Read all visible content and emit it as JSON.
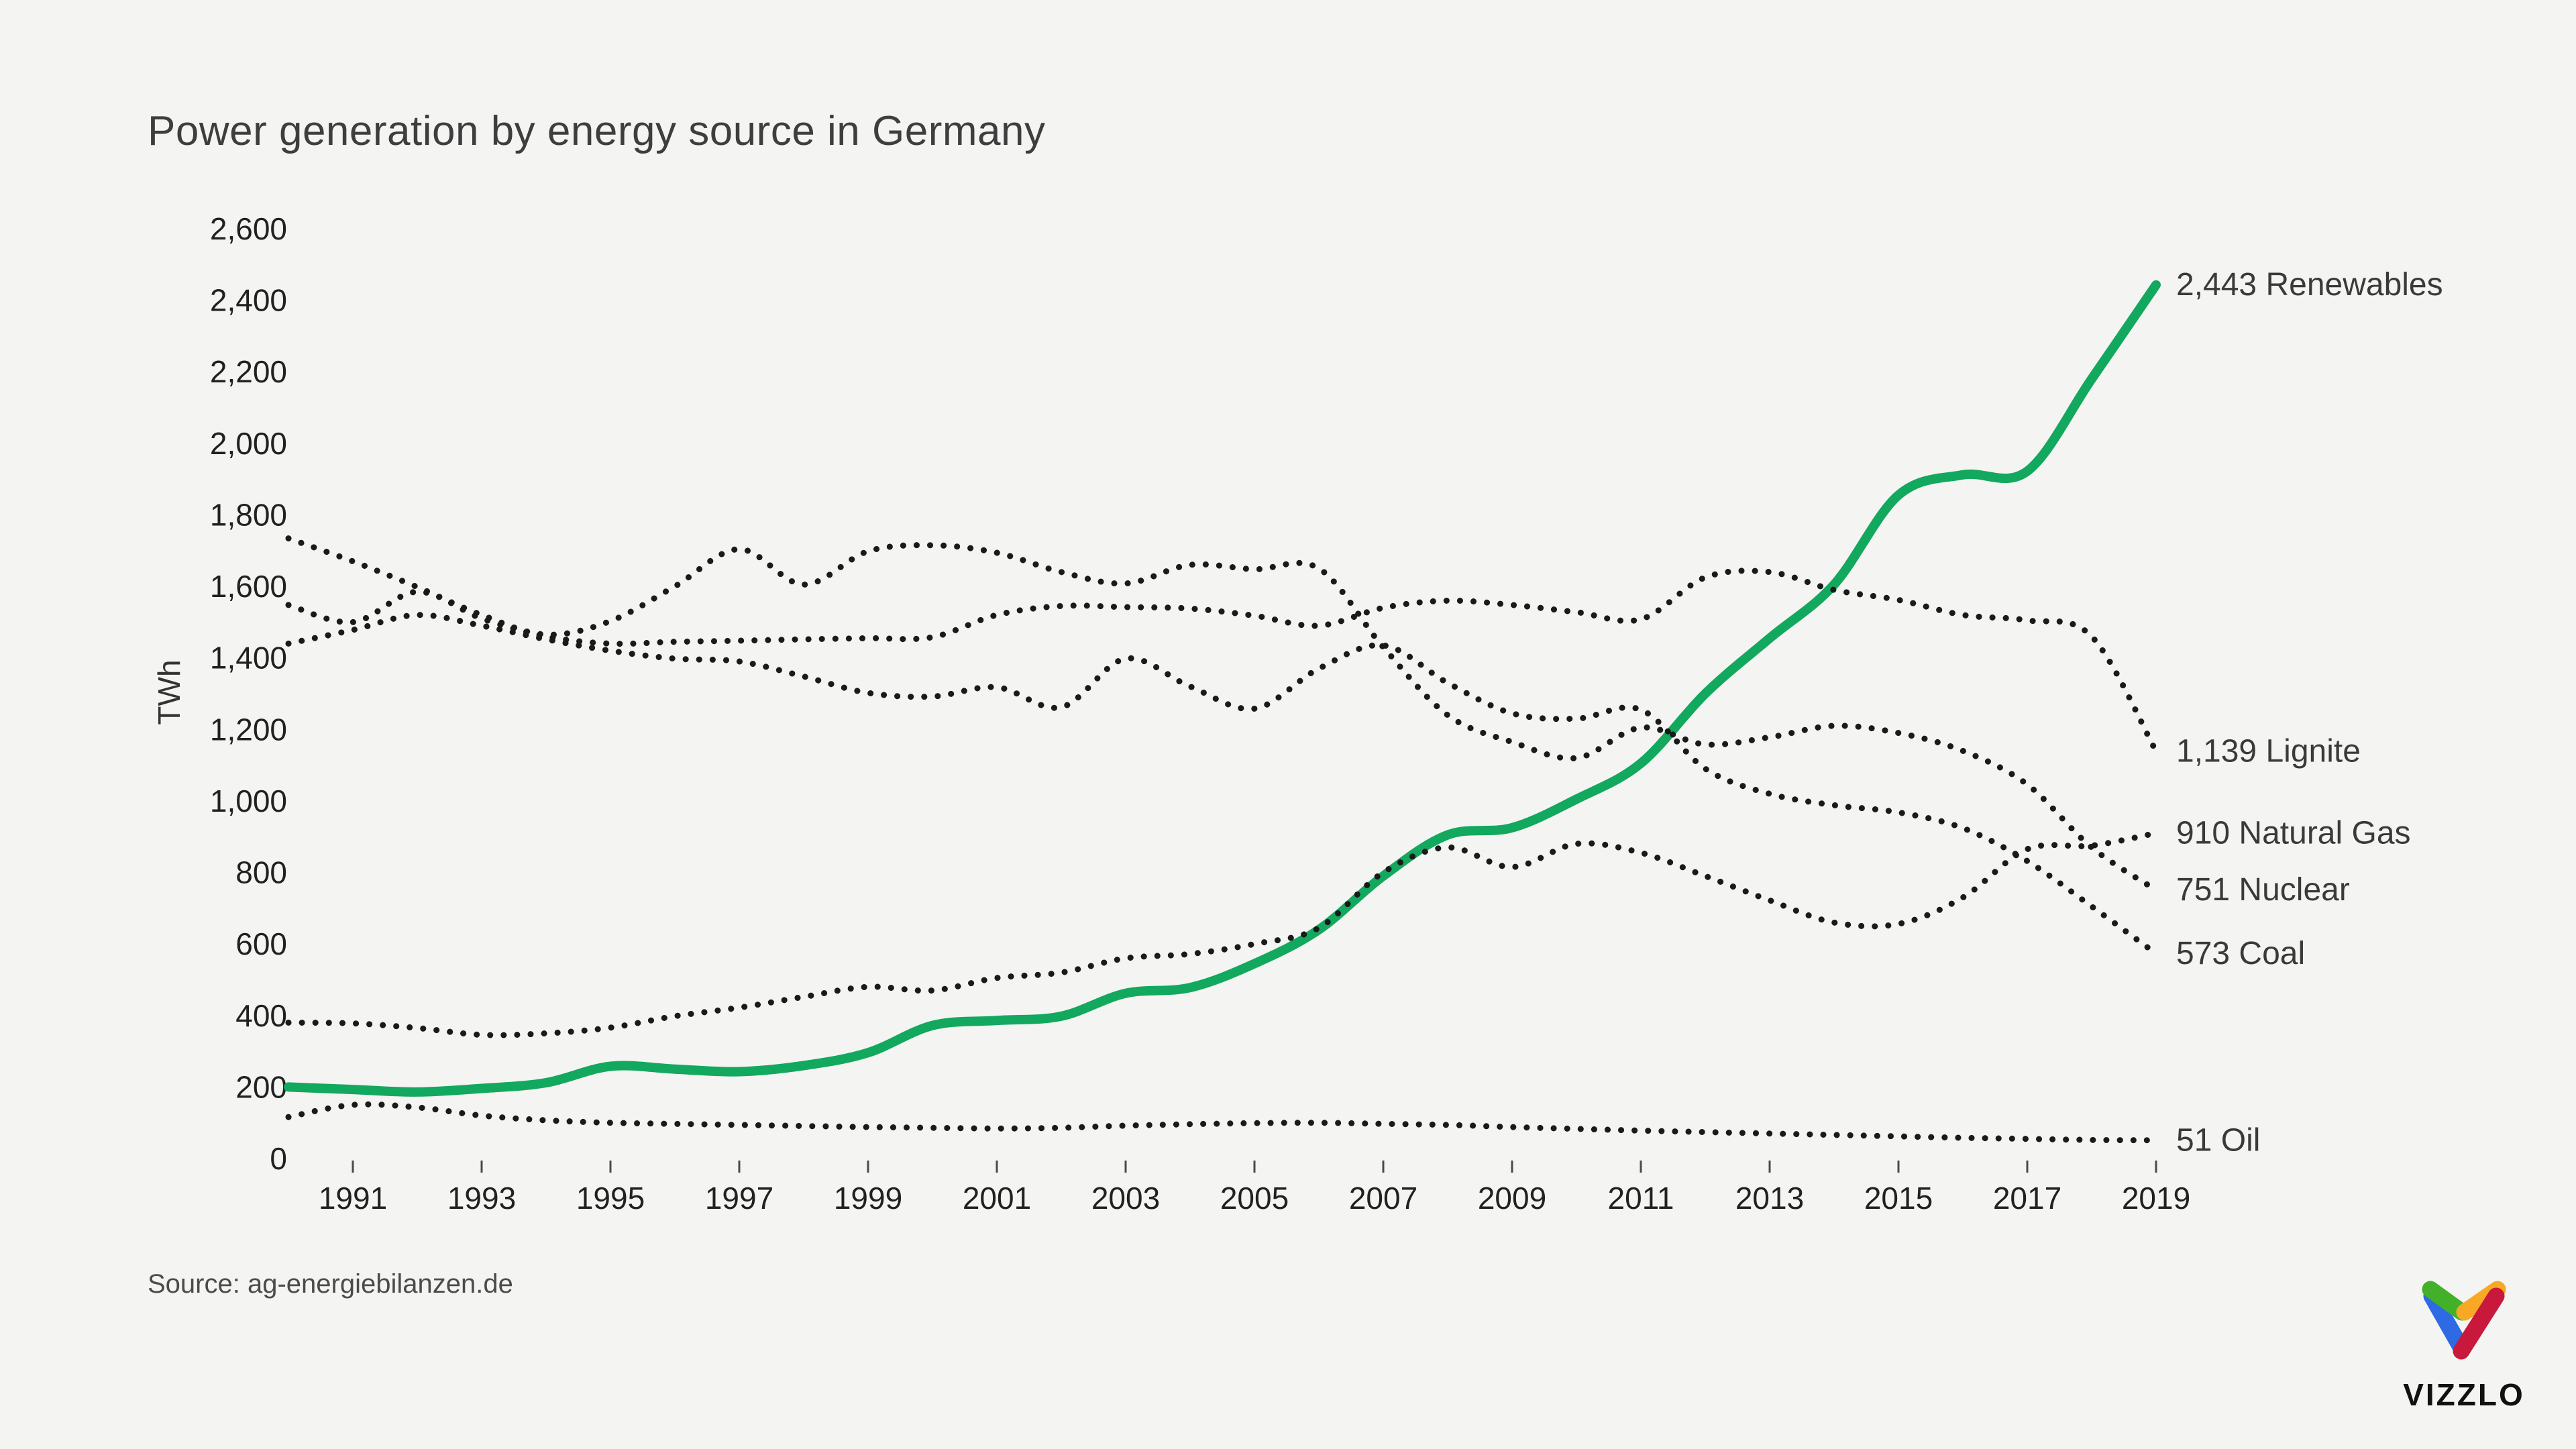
{
  "header": {
    "title": "Power generation by energy source in Germany"
  },
  "source": {
    "text": "Source: ag-energiebilanzen.de"
  },
  "logo": {
    "text": "VIZZLO",
    "colors": {
      "green": "#43b02a",
      "blue": "#2d6ae3",
      "orange": "#f9a825",
      "red": "#c8193c"
    }
  },
  "chart_data": {
    "type": "line",
    "title": "Power generation by energy source in Germany",
    "xlabel": "",
    "ylabel": "TWh",
    "ylim": [
      0,
      2600
    ],
    "y_ticks": [
      0,
      200,
      400,
      600,
      800,
      1000,
      1200,
      1400,
      1600,
      1800,
      2000,
      2200,
      2400,
      2600
    ],
    "x": [
      1990,
      1991,
      1992,
      1993,
      1994,
      1995,
      1996,
      1997,
      1998,
      1999,
      2000,
      2001,
      2002,
      2003,
      2004,
      2005,
      2006,
      2007,
      2008,
      2009,
      2010,
      2011,
      2012,
      2013,
      2014,
      2015,
      2016,
      2017,
      2018,
      2019
    ],
    "x_tick_labels": [
      "1991",
      "1993",
      "1995",
      "1997",
      "1999",
      "2001",
      "2003",
      "2005",
      "2007",
      "2009",
      "2011",
      "2013",
      "2015",
      "2017",
      "2019"
    ],
    "grid": false,
    "legend_position": "end-labels-right",
    "text_colors": {
      "ticks": "#212121",
      "end_labels": "#3a3a3a",
      "axis_title": "#333333"
    },
    "series": [
      {
        "name": "Renewables",
        "style": "solid",
        "color": "#12a85e",
        "line_width": 14,
        "end_label": "2,443 Renewables",
        "end_value": 2443,
        "values": [
          200,
          193,
          186,
          196,
          212,
          258,
          250,
          243,
          260,
          296,
          372,
          386,
          398,
          462,
          478,
          545,
          640,
          790,
          905,
          925,
          1005,
          1105,
          1300,
          1455,
          1605,
          1855,
          1912,
          1922,
          2180,
          2443
        ]
      },
      {
        "name": "Lignite",
        "style": "dotted",
        "color": "#1a1a1a",
        "line_width": 9,
        "end_label": "1,139 Lignite",
        "end_value": 1139,
        "values": [
          1548,
          1500,
          1585,
          1510,
          1460,
          1440,
          1445,
          1448,
          1452,
          1455,
          1458,
          1520,
          1545,
          1542,
          1538,
          1518,
          1490,
          1540,
          1560,
          1548,
          1528,
          1508,
          1625,
          1640,
          1590,
          1562,
          1520,
          1505,
          1460,
          1139
        ]
      },
      {
        "name": "Natural Gas",
        "style": "dotted",
        "color": "#1a1a1a",
        "line_width": 9,
        "end_label": "910 Natural Gas",
        "end_value": 910,
        "values": [
          380,
          378,
          365,
          346,
          350,
          366,
          398,
          422,
          452,
          480,
          470,
          505,
          520,
          560,
          572,
          600,
          645,
          800,
          870,
          815,
          880,
          855,
          790,
          722,
          660,
          656,
          730,
          865,
          875,
          910
        ]
      },
      {
        "name": "Nuclear",
        "style": "dotted",
        "color": "#1a1a1a",
        "line_width": 9,
        "end_label": "751 Nuclear",
        "end_value": 751,
        "values": [
          1734,
          1670,
          1598,
          1520,
          1465,
          1503,
          1600,
          1704,
          1605,
          1698,
          1715,
          1694,
          1640,
          1608,
          1660,
          1648,
          1650,
          1430,
          1240,
          1165,
          1120,
          1205,
          1158,
          1178,
          1210,
          1190,
          1140,
          1046,
          870,
          751
        ]
      },
      {
        "name": "Coal",
        "style": "dotted",
        "color": "#1a1a1a",
        "line_width": 9,
        "end_label": "573 Coal",
        "end_value": 573,
        "values": [
          1440,
          1478,
          1520,
          1490,
          1452,
          1420,
          1398,
          1390,
          1348,
          1302,
          1292,
          1318,
          1262,
          1398,
          1320,
          1258,
          1370,
          1435,
          1330,
          1245,
          1230,
          1255,
          1090,
          1020,
          988,
          968,
          924,
          832,
          705,
          573
        ]
      },
      {
        "name": "Oil",
        "style": "dotted",
        "color": "#1a1a1a",
        "line_width": 9,
        "end_label": "51 Oil",
        "end_value": 51,
        "values": [
          116,
          150,
          143,
          120,
          107,
          100,
          97,
          94,
          91,
          88,
          86,
          84,
          86,
          92,
          96,
          99,
          100,
          97,
          94,
          88,
          83,
          78,
          74,
          70,
          66,
          62,
          58,
          55,
          52,
          51
        ]
      }
    ]
  }
}
